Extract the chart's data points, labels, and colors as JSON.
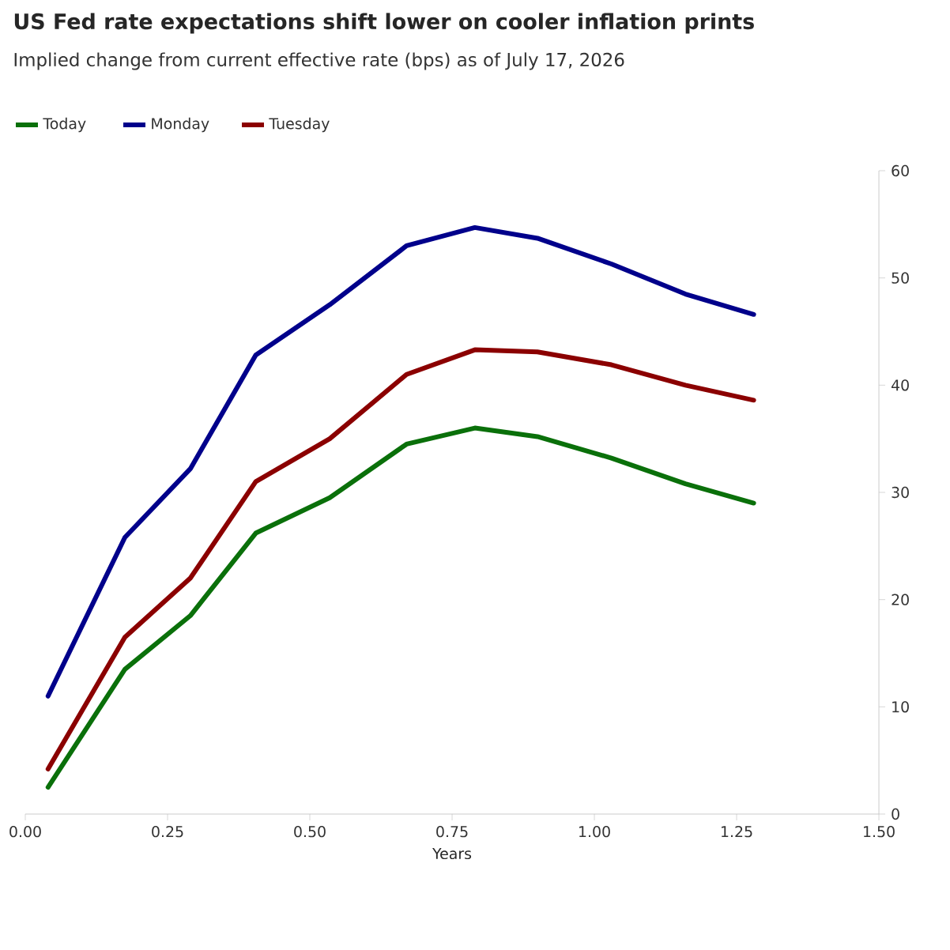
{
  "chart_data": {
    "type": "line",
    "title": "US Fed rate expectations shift lower on cooler inflation prints",
    "subtitle": "Implied change from current effective rate (bps) as of July 17, 2026",
    "xlabel": "Years",
    "x": [
      0.04,
      0.175,
      0.29,
      0.405,
      0.535,
      0.67,
      0.79,
      0.9,
      1.03,
      1.16,
      1.28
    ],
    "series": [
      {
        "name": "Today",
        "color": "#0a700a",
        "values": [
          2.5,
          13.5,
          18.5,
          26.2,
          29.5,
          34.5,
          36,
          35.2,
          33.2,
          30.8,
          29
        ]
      },
      {
        "name": "Monday",
        "color": "#00008b",
        "values": [
          11,
          25.8,
          32.2,
          42.8,
          47.5,
          53,
          54.7,
          53.7,
          51.3,
          48.5,
          46.6
        ]
      },
      {
        "name": "Tuesday",
        "color": "#8b0000",
        "values": [
          4.2,
          16.5,
          22,
          31,
          35,
          41,
          43.3,
          43.1,
          41.9,
          40,
          38.6
        ]
      }
    ],
    "xlim": [
      0,
      1.5
    ],
    "xticks": [
      {
        "value": 0,
        "label": "0.00"
      },
      {
        "value": 0.25,
        "label": "0.25"
      },
      {
        "value": 0.5,
        "label": "0.50"
      },
      {
        "value": 0.75,
        "label": "0.75"
      },
      {
        "value": 1,
        "label": "1.00"
      },
      {
        "value": 1.25,
        "label": "1.25"
      },
      {
        "value": 1.5,
        "label": "1.50"
      }
    ],
    "ylim": [
      0,
      60
    ],
    "yticks": [
      0,
      10,
      20,
      30,
      40,
      50,
      60
    ],
    "legend": "top left",
    "grid": false,
    "marker": "none",
    "line_style": "solid"
  }
}
